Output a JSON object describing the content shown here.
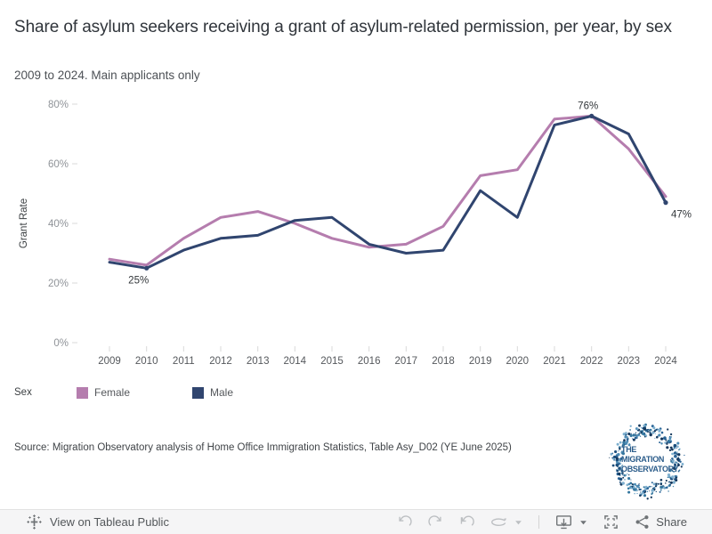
{
  "header": {
    "title": "Share of asylum seekers receiving a grant of asylum-related permission, per year, by sex",
    "subtitle": "2009 to 2024. Main applicants only"
  },
  "chart_data": {
    "type": "line",
    "x": [
      2009,
      2010,
      2011,
      2012,
      2013,
      2014,
      2015,
      2016,
      2017,
      2018,
      2019,
      2020,
      2021,
      2022,
      2023,
      2024
    ],
    "ylabel": "Grant Rate",
    "ylim": [
      0,
      80
    ],
    "grid": false,
    "legend_position": "bottom",
    "yticks": [
      {
        "value": 0,
        "label": "0%"
      },
      {
        "value": 20,
        "label": "20%"
      },
      {
        "value": 40,
        "label": "40%"
      },
      {
        "value": 60,
        "label": "60%"
      },
      {
        "value": 80,
        "label": "80%"
      }
    ],
    "series": [
      {
        "name": "Female",
        "color": "#b57dae",
        "values": [
          28,
          26,
          35,
          42,
          44,
          40,
          35,
          32,
          33,
          39,
          56,
          58,
          75,
          76,
          65,
          49
        ]
      },
      {
        "name": "Male",
        "color": "#30456f",
        "values": [
          27,
          25,
          31,
          35,
          36,
          41,
          42,
          33,
          30,
          31,
          51,
          42,
          73,
          76,
          70,
          47
        ]
      }
    ],
    "annotations": [
      {
        "year": 2010,
        "value": 25,
        "label": "25%",
        "series": "Male",
        "placement": "below"
      },
      {
        "year": 2022,
        "value": 76,
        "label": "76%",
        "series": "Male",
        "placement": "above"
      },
      {
        "year": 2024,
        "value": 47,
        "label": "47%",
        "series": "Male",
        "placement": "right"
      }
    ]
  },
  "legend": {
    "title": "Sex",
    "items": [
      {
        "label": "Female",
        "color": "#b57dae"
      },
      {
        "label": "Male",
        "color": "#30456f"
      }
    ]
  },
  "source": {
    "text": "Source: Migration Observatory analysis of Home Office Immigration Statistics, Table Asy_D02 (YE June 2025)"
  },
  "logo": {
    "line1": "THE",
    "line2": "MIGRATION",
    "line3": "OBSERVATORY",
    "text_color": "#2b5c8a"
  },
  "toolbar": {
    "view_label": "View on Tableau Public",
    "share_label": "Share"
  }
}
